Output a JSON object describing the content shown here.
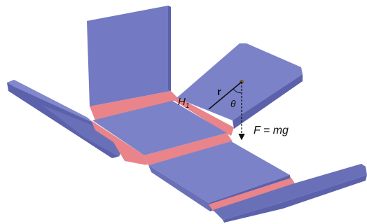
{
  "labels": {
    "hinge": {
      "text": "H",
      "subscript": "1"
    },
    "radius": "r",
    "angle": "θ",
    "force": "F = mg"
  }
}
